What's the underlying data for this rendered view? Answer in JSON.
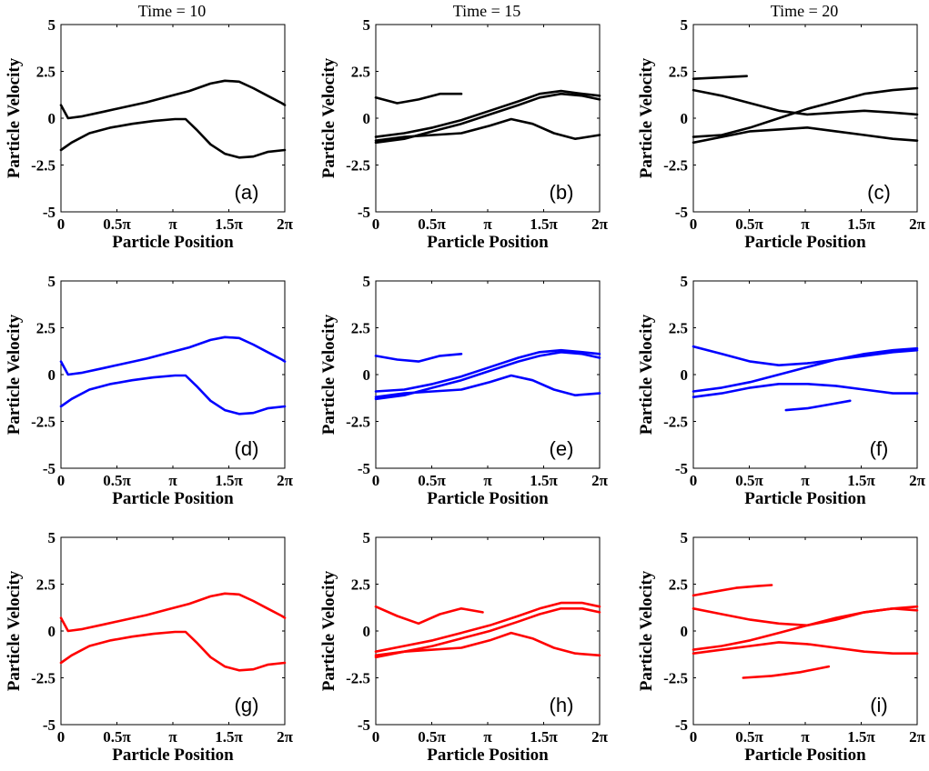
{
  "figure": {
    "column_titles": [
      "Time = 10",
      "Time = 15",
      "Time = 20"
    ],
    "row_colors": [
      "#000000",
      "#0000ff",
      "#ff0000"
    ]
  },
  "chart_data": [
    {
      "panel": "(a)",
      "type": "line",
      "row": 0,
      "col": 0,
      "xlabel": "Particle Position",
      "ylabel": "Particle Velocity",
      "xticks": [
        "0",
        "0.5π",
        "π",
        "1.5π",
        "2π"
      ],
      "yticks": [
        "5",
        "2.5",
        "0",
        "-2.5",
        "-5"
      ],
      "xlim": [
        0,
        6.283
      ],
      "ylim": [
        -5,
        5
      ],
      "series": [
        {
          "x": [
            0,
            0.2,
            0.6,
            1.2,
            1.8,
            2.4,
            3.0,
            3.6,
            4.2,
            4.6,
            5.0,
            5.4,
            5.8,
            6.2,
            6.283
          ],
          "y": [
            0.7,
            0.0,
            0.1,
            0.35,
            0.6,
            0.85,
            1.15,
            1.45,
            1.85,
            2.0,
            1.95,
            1.6,
            1.2,
            0.8,
            0.7
          ]
        },
        {
          "x": [
            0,
            0.3,
            0.8,
            1.4,
            2.0,
            2.6,
            3.2,
            3.5,
            3.8,
            4.2,
            4.6,
            5.0,
            5.4,
            5.8,
            6.283
          ],
          "y": [
            -1.7,
            -1.3,
            -0.8,
            -0.5,
            -0.3,
            -0.15,
            -0.05,
            -0.05,
            -0.6,
            -1.4,
            -1.9,
            -2.1,
            -2.05,
            -1.8,
            -1.7
          ]
        }
      ]
    },
    {
      "panel": "(b)",
      "type": "line",
      "row": 0,
      "col": 1,
      "xlabel": "Particle Position",
      "ylabel": "Particle Velocity",
      "xticks": [
        "0",
        "0.5π",
        "π",
        "1.5π",
        "2π"
      ],
      "yticks": [
        "5",
        "2.5",
        "0",
        "-2.5",
        "-5"
      ],
      "xlim": [
        0,
        6.283
      ],
      "ylim": [
        -5,
        5
      ],
      "series": [
        {
          "x": [
            0,
            0.6,
            1.2,
            1.8,
            2.4
          ],
          "y": [
            1.1,
            0.8,
            1.0,
            1.3,
            1.3
          ]
        },
        {
          "x": [
            0,
            0.8,
            1.6,
            2.4,
            3.2,
            4.0,
            4.6,
            5.2,
            5.8,
            6.283
          ],
          "y": [
            -1.0,
            -0.8,
            -0.5,
            -0.1,
            0.4,
            0.9,
            1.3,
            1.45,
            1.3,
            1.2
          ]
        },
        {
          "x": [
            0,
            0.8,
            1.6,
            2.4,
            3.2,
            4.0,
            4.6,
            5.2,
            5.8,
            6.283
          ],
          "y": [
            -1.3,
            -1.1,
            -0.7,
            -0.3,
            0.2,
            0.7,
            1.1,
            1.3,
            1.2,
            1.0
          ]
        },
        {
          "x": [
            0,
            0.8,
            1.6,
            2.4,
            3.2,
            3.8,
            4.4,
            5.0,
            5.6,
            6.283
          ],
          "y": [
            -1.2,
            -1.0,
            -0.9,
            -0.8,
            -0.4,
            -0.05,
            -0.3,
            -0.8,
            -1.1,
            -0.9
          ]
        }
      ]
    },
    {
      "panel": "(c)",
      "type": "line",
      "row": 0,
      "col": 2,
      "xlabel": "Particle Position",
      "ylabel": "Particle Velocity",
      "xticks": [
        "0",
        "0.5π",
        "π",
        "1.5π",
        "2π"
      ],
      "yticks": [
        "5",
        "2.5",
        "0",
        "-2.5",
        "-5"
      ],
      "xlim": [
        0,
        6.283
      ],
      "ylim": [
        -5,
        5
      ],
      "series": [
        {
          "x": [
            0,
            0.8,
            1.6,
            2.4,
            3.2,
            4.0,
            4.8,
            5.6,
            6.283
          ],
          "y": [
            1.5,
            1.2,
            0.8,
            0.4,
            0.2,
            0.3,
            0.4,
            0.3,
            0.2
          ]
        },
        {
          "x": [
            0,
            0.8,
            1.6,
            2.4,
            3.2,
            4.0,
            4.8,
            5.6,
            6.283
          ],
          "y": [
            -1.0,
            -0.9,
            -0.5,
            0.0,
            0.5,
            0.9,
            1.3,
            1.5,
            1.6
          ]
        },
        {
          "x": [
            0,
            0.8,
            1.6,
            2.4,
            3.2,
            4.0,
            4.8,
            5.6,
            6.283
          ],
          "y": [
            -1.3,
            -1.0,
            -0.7,
            -0.6,
            -0.5,
            -0.7,
            -0.9,
            -1.1,
            -1.2
          ]
        },
        {
          "x": [
            0,
            0.5,
            1.0,
            1.5
          ],
          "y": [
            2.1,
            2.15,
            2.2,
            2.25
          ]
        }
      ]
    },
    {
      "panel": "(d)",
      "type": "line",
      "row": 1,
      "col": 0,
      "xlabel": "Particle Position",
      "ylabel": "Particle Velocity",
      "xticks": [
        "0",
        "0.5π",
        "π",
        "1.5π",
        "2π"
      ],
      "yticks": [
        "5",
        "2.5",
        "0",
        "-2.5",
        "-5"
      ],
      "xlim": [
        0,
        6.283
      ],
      "ylim": [
        -5,
        5
      ],
      "series": [
        {
          "x": [
            0,
            0.2,
            0.6,
            1.2,
            1.8,
            2.4,
            3.0,
            3.6,
            4.2,
            4.6,
            5.0,
            5.4,
            5.8,
            6.2,
            6.283
          ],
          "y": [
            0.7,
            0.0,
            0.1,
            0.35,
            0.6,
            0.85,
            1.15,
            1.45,
            1.85,
            2.0,
            1.95,
            1.6,
            1.2,
            0.8,
            0.7
          ]
        },
        {
          "x": [
            0,
            0.3,
            0.8,
            1.4,
            2.0,
            2.6,
            3.2,
            3.5,
            3.8,
            4.2,
            4.6,
            5.0,
            5.4,
            5.8,
            6.283
          ],
          "y": [
            -1.7,
            -1.3,
            -0.8,
            -0.5,
            -0.3,
            -0.15,
            -0.05,
            -0.05,
            -0.6,
            -1.4,
            -1.9,
            -2.1,
            -2.05,
            -1.8,
            -1.7
          ]
        }
      ]
    },
    {
      "panel": "(e)",
      "type": "line",
      "row": 1,
      "col": 1,
      "xlabel": "Particle Position",
      "ylabel": "Particle Velocity",
      "xticks": [
        "0",
        "0.5π",
        "π",
        "1.5π",
        "2π"
      ],
      "yticks": [
        "5",
        "2.5",
        "0",
        "-2.5",
        "-5"
      ],
      "xlim": [
        0,
        6.283
      ],
      "ylim": [
        -5,
        5
      ],
      "series": [
        {
          "x": [
            0,
            0.6,
            1.2,
            1.8,
            2.4
          ],
          "y": [
            1.0,
            0.8,
            0.7,
            1.0,
            1.1
          ]
        },
        {
          "x": [
            0,
            0.8,
            1.6,
            2.4,
            3.2,
            4.0,
            4.6,
            5.2,
            5.8,
            6.283
          ],
          "y": [
            -0.9,
            -0.8,
            -0.5,
            -0.1,
            0.4,
            0.9,
            1.2,
            1.3,
            1.2,
            1.1
          ]
        },
        {
          "x": [
            0,
            0.8,
            1.6,
            2.4,
            3.2,
            4.0,
            4.6,
            5.2,
            5.8,
            6.283
          ],
          "y": [
            -1.3,
            -1.1,
            -0.7,
            -0.3,
            0.2,
            0.7,
            1.0,
            1.2,
            1.1,
            0.9
          ]
        },
        {
          "x": [
            0,
            0.8,
            1.6,
            2.4,
            3.2,
            3.8,
            4.4,
            5.0,
            5.6,
            6.283
          ],
          "y": [
            -1.2,
            -1.0,
            -0.9,
            -0.8,
            -0.4,
            -0.05,
            -0.3,
            -0.8,
            -1.1,
            -1.0
          ]
        }
      ]
    },
    {
      "panel": "(f)",
      "type": "line",
      "row": 1,
      "col": 2,
      "xlabel": "Particle Position",
      "ylabel": "Particle Velocity",
      "xticks": [
        "0",
        "0.5π",
        "π",
        "1.5π",
        "2π"
      ],
      "yticks": [
        "5",
        "2.5",
        "0",
        "-2.5",
        "-5"
      ],
      "xlim": [
        0,
        6.283
      ],
      "ylim": [
        -5,
        5
      ],
      "series": [
        {
          "x": [
            0,
            0.8,
            1.6,
            2.4,
            3.2,
            4.0,
            4.8,
            5.6,
            6.283
          ],
          "y": [
            1.5,
            1.1,
            0.7,
            0.5,
            0.6,
            0.8,
            1.0,
            1.2,
            1.3
          ]
        },
        {
          "x": [
            0,
            0.8,
            1.6,
            2.4,
            3.2,
            4.0,
            4.8,
            5.6,
            6.283
          ],
          "y": [
            -0.9,
            -0.7,
            -0.4,
            0.0,
            0.4,
            0.8,
            1.1,
            1.3,
            1.4
          ]
        },
        {
          "x": [
            0,
            0.8,
            1.6,
            2.4,
            3.2,
            4.0,
            4.8,
            5.6,
            6.283
          ],
          "y": [
            -1.2,
            -1.0,
            -0.7,
            -0.5,
            -0.5,
            -0.6,
            -0.8,
            -1.0,
            -1.0
          ]
        },
        {
          "x": [
            2.6,
            3.2,
            3.8,
            4.4
          ],
          "y": [
            -1.9,
            -1.8,
            -1.6,
            -1.4
          ]
        }
      ]
    },
    {
      "panel": "(g)",
      "type": "line",
      "row": 2,
      "col": 0,
      "xlabel": "Particle Position",
      "ylabel": "Particle Velocity",
      "xticks": [
        "0",
        "0.5π",
        "π",
        "1.5π",
        "2π"
      ],
      "yticks": [
        "5",
        "2.5",
        "0",
        "-2.5",
        "-5"
      ],
      "xlim": [
        0,
        6.283
      ],
      "ylim": [
        -5,
        5
      ],
      "series": [
        {
          "x": [
            0,
            0.2,
            0.6,
            1.2,
            1.8,
            2.4,
            3.0,
            3.6,
            4.2,
            4.6,
            5.0,
            5.4,
            5.8,
            6.2,
            6.283
          ],
          "y": [
            0.7,
            0.0,
            0.1,
            0.35,
            0.6,
            0.85,
            1.15,
            1.45,
            1.85,
            2.0,
            1.95,
            1.6,
            1.2,
            0.8,
            0.7
          ]
        },
        {
          "x": [
            0,
            0.3,
            0.8,
            1.4,
            2.0,
            2.6,
            3.2,
            3.5,
            3.8,
            4.2,
            4.6,
            5.0,
            5.4,
            5.8,
            6.283
          ],
          "y": [
            -1.7,
            -1.3,
            -0.8,
            -0.5,
            -0.3,
            -0.15,
            -0.05,
            -0.05,
            -0.6,
            -1.4,
            -1.9,
            -2.1,
            -2.05,
            -1.8,
            -1.7
          ]
        }
      ]
    },
    {
      "panel": "(h)",
      "type": "line",
      "row": 2,
      "col": 1,
      "xlabel": "Particle Position",
      "ylabel": "Particle Velocity",
      "xticks": [
        "0",
        "0.5π",
        "π",
        "1.5π",
        "2π"
      ],
      "yticks": [
        "5",
        "2.5",
        "0",
        "-2.5",
        "-5"
      ],
      "xlim": [
        0,
        6.283
      ],
      "ylim": [
        -5,
        5
      ],
      "series": [
        {
          "x": [
            0,
            0.6,
            1.2,
            1.8,
            2.4,
            3.0
          ],
          "y": [
            1.3,
            0.8,
            0.4,
            0.9,
            1.2,
            1.0
          ]
        },
        {
          "x": [
            0,
            0.8,
            1.6,
            2.4,
            3.2,
            4.0,
            4.6,
            5.2,
            5.8,
            6.283
          ],
          "y": [
            -1.1,
            -0.8,
            -0.5,
            -0.1,
            0.3,
            0.8,
            1.2,
            1.5,
            1.5,
            1.3
          ]
        },
        {
          "x": [
            0,
            0.8,
            1.6,
            2.4,
            3.2,
            4.0,
            4.6,
            5.2,
            5.8,
            6.283
          ],
          "y": [
            -1.4,
            -1.1,
            -0.8,
            -0.4,
            0.0,
            0.5,
            0.9,
            1.2,
            1.2,
            1.0
          ]
        },
        {
          "x": [
            0,
            0.8,
            1.6,
            2.4,
            3.2,
            3.8,
            4.4,
            5.0,
            5.6,
            6.283
          ],
          "y": [
            -1.3,
            -1.1,
            -1.0,
            -0.9,
            -0.5,
            -0.1,
            -0.4,
            -0.9,
            -1.2,
            -1.3
          ]
        }
      ]
    },
    {
      "panel": "(i)",
      "type": "line",
      "row": 2,
      "col": 2,
      "xlabel": "Particle Position",
      "ylabel": "Particle Velocity",
      "xticks": [
        "0",
        "0.5π",
        "π",
        "1.5π",
        "2π"
      ],
      "yticks": [
        "5",
        "2.5",
        "0",
        "-2.5",
        "-5"
      ],
      "xlim": [
        0,
        6.283
      ],
      "ylim": [
        -5,
        5
      ],
      "series": [
        {
          "x": [
            0,
            0.6,
            1.2,
            1.8,
            2.2
          ],
          "y": [
            1.9,
            2.1,
            2.3,
            2.4,
            2.45
          ]
        },
        {
          "x": [
            0,
            0.8,
            1.6,
            2.4,
            3.2,
            4.0,
            4.8,
            5.6,
            6.283
          ],
          "y": [
            1.2,
            0.9,
            0.6,
            0.4,
            0.3,
            0.6,
            1.0,
            1.2,
            1.3
          ]
        },
        {
          "x": [
            0,
            0.8,
            1.6,
            2.4,
            3.2,
            4.0,
            4.8,
            5.6,
            6.283
          ],
          "y": [
            -1.0,
            -0.8,
            -0.5,
            -0.1,
            0.3,
            0.7,
            1.0,
            1.2,
            1.1
          ]
        },
        {
          "x": [
            0,
            0.8,
            1.6,
            2.4,
            3.2,
            4.0,
            4.8,
            5.6,
            6.283
          ],
          "y": [
            -1.2,
            -1.0,
            -0.8,
            -0.6,
            -0.7,
            -0.9,
            -1.1,
            -1.2,
            -1.2
          ]
        },
        {
          "x": [
            1.4,
            2.2,
            3.0,
            3.8
          ],
          "y": [
            -2.5,
            -2.4,
            -2.2,
            -1.9
          ]
        }
      ]
    }
  ]
}
